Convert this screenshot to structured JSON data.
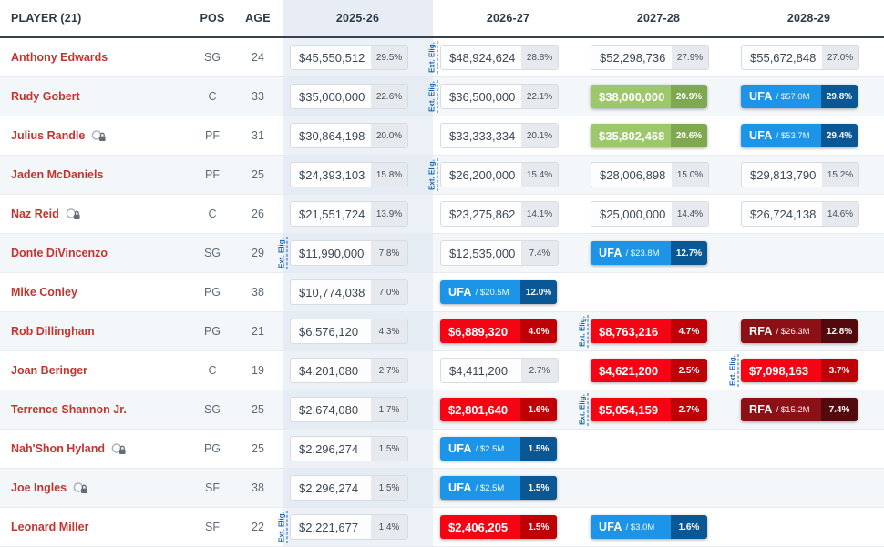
{
  "header": {
    "player": "PLAYER (21)",
    "pos": "POS",
    "age": "AGE",
    "seasons": [
      "2025-26",
      "2026-27",
      "2027-28",
      "2028-29"
    ]
  },
  "labels": {
    "ext_elig": "Ext. Elig."
  },
  "colors": {
    "player_name": "#c3342e",
    "header_text": "#2b3a48",
    "season0_tint": "#e8edf5",
    "salary_red": "#f50414",
    "salary_red_dark": "#c00007",
    "salary_green": "#9cc76a",
    "salary_green_dark": "#7fa950",
    "ufa_blue": "#1c95e8",
    "ufa_blue_dark": "#0a5795",
    "rfa_maroon": "#8c1117",
    "rfa_maroon_dark": "#540a0d",
    "ext_elig_blue": "#1a67b5"
  },
  "players": [
    {
      "name": "Anthony Edwards",
      "pos": "SG",
      "age": "24",
      "icon": false,
      "ext_before": 1,
      "seasons": [
        {
          "type": "plain",
          "value": "$45,550,512",
          "pct": "29.5%"
        },
        {
          "type": "plain",
          "value": "$48,924,624",
          "pct": "28.8%"
        },
        {
          "type": "plain",
          "value": "$52,298,736",
          "pct": "27.9%"
        },
        {
          "type": "plain",
          "value": "$55,672,848",
          "pct": "27.0%"
        }
      ]
    },
    {
      "name": "Rudy Gobert",
      "pos": "C",
      "age": "33",
      "icon": false,
      "ext_before": 1,
      "seasons": [
        {
          "type": "plain",
          "value": "$35,000,000",
          "pct": "22.6%"
        },
        {
          "type": "plain",
          "value": "$36,500,000",
          "pct": "22.1%"
        },
        {
          "type": "green",
          "value": "$38,000,000",
          "pct": "20.9%"
        },
        {
          "type": "ufa",
          "label": "UFA",
          "value": "$57.0M",
          "pct": "29.8%"
        }
      ]
    },
    {
      "name": "Julius Randle",
      "pos": "PF",
      "age": "31",
      "icon": true,
      "ext_before": -1,
      "seasons": [
        {
          "type": "plain",
          "value": "$30,864,198",
          "pct": "20.0%"
        },
        {
          "type": "plain",
          "value": "$33,333,334",
          "pct": "20.1%"
        },
        {
          "type": "green",
          "value": "$35,802,468",
          "pct": "20.6%"
        },
        {
          "type": "ufa",
          "label": "UFA",
          "value": "$53.7M",
          "pct": "29.4%"
        }
      ]
    },
    {
      "name": "Jaden McDaniels",
      "pos": "PF",
      "age": "25",
      "icon": false,
      "ext_before": 1,
      "seasons": [
        {
          "type": "plain",
          "value": "$24,393,103",
          "pct": "15.8%"
        },
        {
          "type": "plain",
          "value": "$26,200,000",
          "pct": "15.4%"
        },
        {
          "type": "plain",
          "value": "$28,006,898",
          "pct": "15.0%"
        },
        {
          "type": "plain",
          "value": "$29,813,790",
          "pct": "15.2%"
        }
      ]
    },
    {
      "name": "Naz Reid",
      "pos": "C",
      "age": "26",
      "icon": true,
      "ext_before": -1,
      "seasons": [
        {
          "type": "plain",
          "value": "$21,551,724",
          "pct": "13.9%"
        },
        {
          "type": "plain",
          "value": "$23,275,862",
          "pct": "14.1%"
        },
        {
          "type": "plain",
          "value": "$25,000,000",
          "pct": "14.4%"
        },
        {
          "type": "plain",
          "value": "$26,724,138",
          "pct": "14.6%"
        }
      ]
    },
    {
      "name": "Donte DiVincenzo",
      "pos": "SG",
      "age": "29",
      "icon": false,
      "ext_before": 0,
      "seasons": [
        {
          "type": "plain",
          "value": "$11,990,000",
          "pct": "7.8%"
        },
        {
          "type": "plain",
          "value": "$12,535,000",
          "pct": "7.4%"
        },
        {
          "type": "ufa",
          "label": "UFA",
          "value": "$23.8M",
          "pct": "12.7%"
        },
        null
      ]
    },
    {
      "name": "Mike Conley",
      "pos": "PG",
      "age": "38",
      "icon": false,
      "ext_before": -1,
      "seasons": [
        {
          "type": "plain",
          "value": "$10,774,038",
          "pct": "7.0%"
        },
        {
          "type": "ufa",
          "label": "UFA",
          "value": "$20.5M",
          "pct": "12.0%"
        },
        null,
        null
      ]
    },
    {
      "name": "Rob Dillingham",
      "pos": "PG",
      "age": "21",
      "icon": false,
      "ext_before": 2,
      "seasons": [
        {
          "type": "plain",
          "value": "$6,576,120",
          "pct": "4.3%"
        },
        {
          "type": "red",
          "value": "$6,889,320",
          "pct": "4.0%"
        },
        {
          "type": "red",
          "value": "$8,763,216",
          "pct": "4.7%"
        },
        {
          "type": "rfa",
          "label": "RFA",
          "value": "$26.3M",
          "pct": "12.8%"
        }
      ]
    },
    {
      "name": "Joan Beringer",
      "pos": "C",
      "age": "19",
      "icon": false,
      "ext_before": 3,
      "seasons": [
        {
          "type": "plain",
          "value": "$4,201,080",
          "pct": "2.7%"
        },
        {
          "type": "plain",
          "value": "$4,411,200",
          "pct": "2.7%"
        },
        {
          "type": "red",
          "value": "$4,621,200",
          "pct": "2.5%"
        },
        {
          "type": "red",
          "value": "$7,098,163",
          "pct": "3.7%"
        }
      ]
    },
    {
      "name": "Terrence Shannon Jr.",
      "pos": "SG",
      "age": "25",
      "icon": false,
      "ext_before": 2,
      "seasons": [
        {
          "type": "plain",
          "value": "$2,674,080",
          "pct": "1.7%"
        },
        {
          "type": "red",
          "value": "$2,801,640",
          "pct": "1.6%"
        },
        {
          "type": "red",
          "value": "$5,054,159",
          "pct": "2.7%"
        },
        {
          "type": "rfa",
          "label": "RFA",
          "value": "$15.2M",
          "pct": "7.4%"
        }
      ]
    },
    {
      "name": "Nah'Shon Hyland",
      "pos": "PG",
      "age": "25",
      "icon": true,
      "ext_before": -1,
      "seasons": [
        {
          "type": "plain",
          "value": "$2,296,274",
          "pct": "1.5%"
        },
        {
          "type": "ufa",
          "label": "UFA",
          "value": "$2.5M",
          "pct": "1.5%"
        },
        null,
        null
      ]
    },
    {
      "name": "Joe Ingles",
      "pos": "SF",
      "age": "38",
      "icon": true,
      "ext_before": -1,
      "seasons": [
        {
          "type": "plain",
          "value": "$2,296,274",
          "pct": "1.5%"
        },
        {
          "type": "ufa",
          "label": "UFA",
          "value": "$2.5M",
          "pct": "1.5%"
        },
        null,
        null
      ]
    },
    {
      "name": "Leonard Miller",
      "pos": "SF",
      "age": "22",
      "icon": false,
      "ext_before": 0,
      "seasons": [
        {
          "type": "plain",
          "value": "$2,221,677",
          "pct": "1.4%"
        },
        {
          "type": "red",
          "value": "$2,406,205",
          "pct": "1.5%"
        },
        {
          "type": "ufa",
          "label": "UFA",
          "value": "$3.0M",
          "pct": "1.6%"
        },
        null
      ]
    }
  ]
}
